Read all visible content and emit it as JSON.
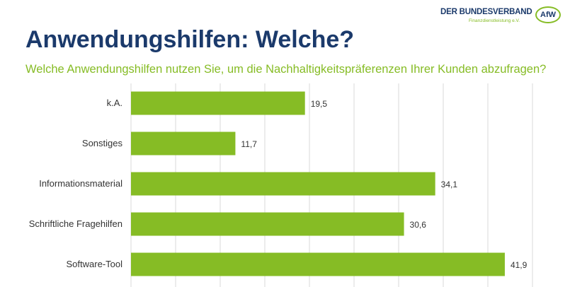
{
  "header": {
    "title": "Anwendungshilfen: Welche?",
    "logo": {
      "name": "DER BUNDESVERBAND",
      "tagline": "Finanzdienstleistung e.V.",
      "badge": "AfW"
    }
  },
  "colors": {
    "bar": "#86bc25",
    "title": "#1b3a6b",
    "subtitle": "#86bc25",
    "grid": "#d9d9d9"
  },
  "chart_data": {
    "type": "bar",
    "orientation": "horizontal",
    "title": "Welche Anwendungshilfen nutzen Sie, um die Nachhaltigkeitspräferenzen Ihrer Kunden abzufragen?",
    "categories": [
      "k.A.",
      "Sonstiges",
      "Informationsmaterial",
      "Schriftliche Fragehilfen",
      "Software-Tool"
    ],
    "values": [
      19.5,
      11.7,
      34.1,
      30.6,
      41.9
    ],
    "data_labels": [
      "19,5",
      "11,7",
      "34,1",
      "30,6",
      "41,9"
    ],
    "xlim": [
      0,
      45
    ],
    "grid_step": 5,
    "grid": true,
    "legend": "none"
  }
}
